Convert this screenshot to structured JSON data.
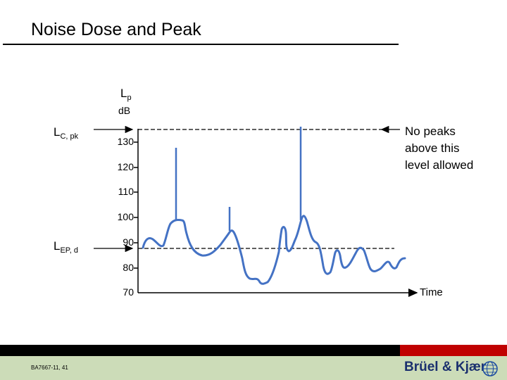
{
  "slide": {
    "title": "Noise Dose and Peak",
    "y_label_main": "L",
    "y_label_sub": "p",
    "y_unit": "dB",
    "peak_label_main": "L",
    "peak_label_sub": "C, pk",
    "dose_label_main": "L",
    "dose_label_sub": "EP, d",
    "note_lines": [
      "No peaks",
      "above this",
      "level allowed"
    ],
    "x_label": "Time"
  },
  "footer": {
    "code": "BA7667-11, 41",
    "brand": "Brüel & Kjær"
  },
  "chart_data": {
    "type": "line",
    "y_ticks": [
      130,
      120,
      110,
      100,
      90,
      80,
      70
    ],
    "ylim": [
      70,
      135
    ],
    "peak_limit_db": 130,
    "dose_level_db": 88,
    "line_color": "#4472c4"
  },
  "colors": {
    "accent": "#4472c4",
    "footer_red": "#c00000",
    "footer_band": "#ccdcb8",
    "brand": "#1a2f6e"
  }
}
